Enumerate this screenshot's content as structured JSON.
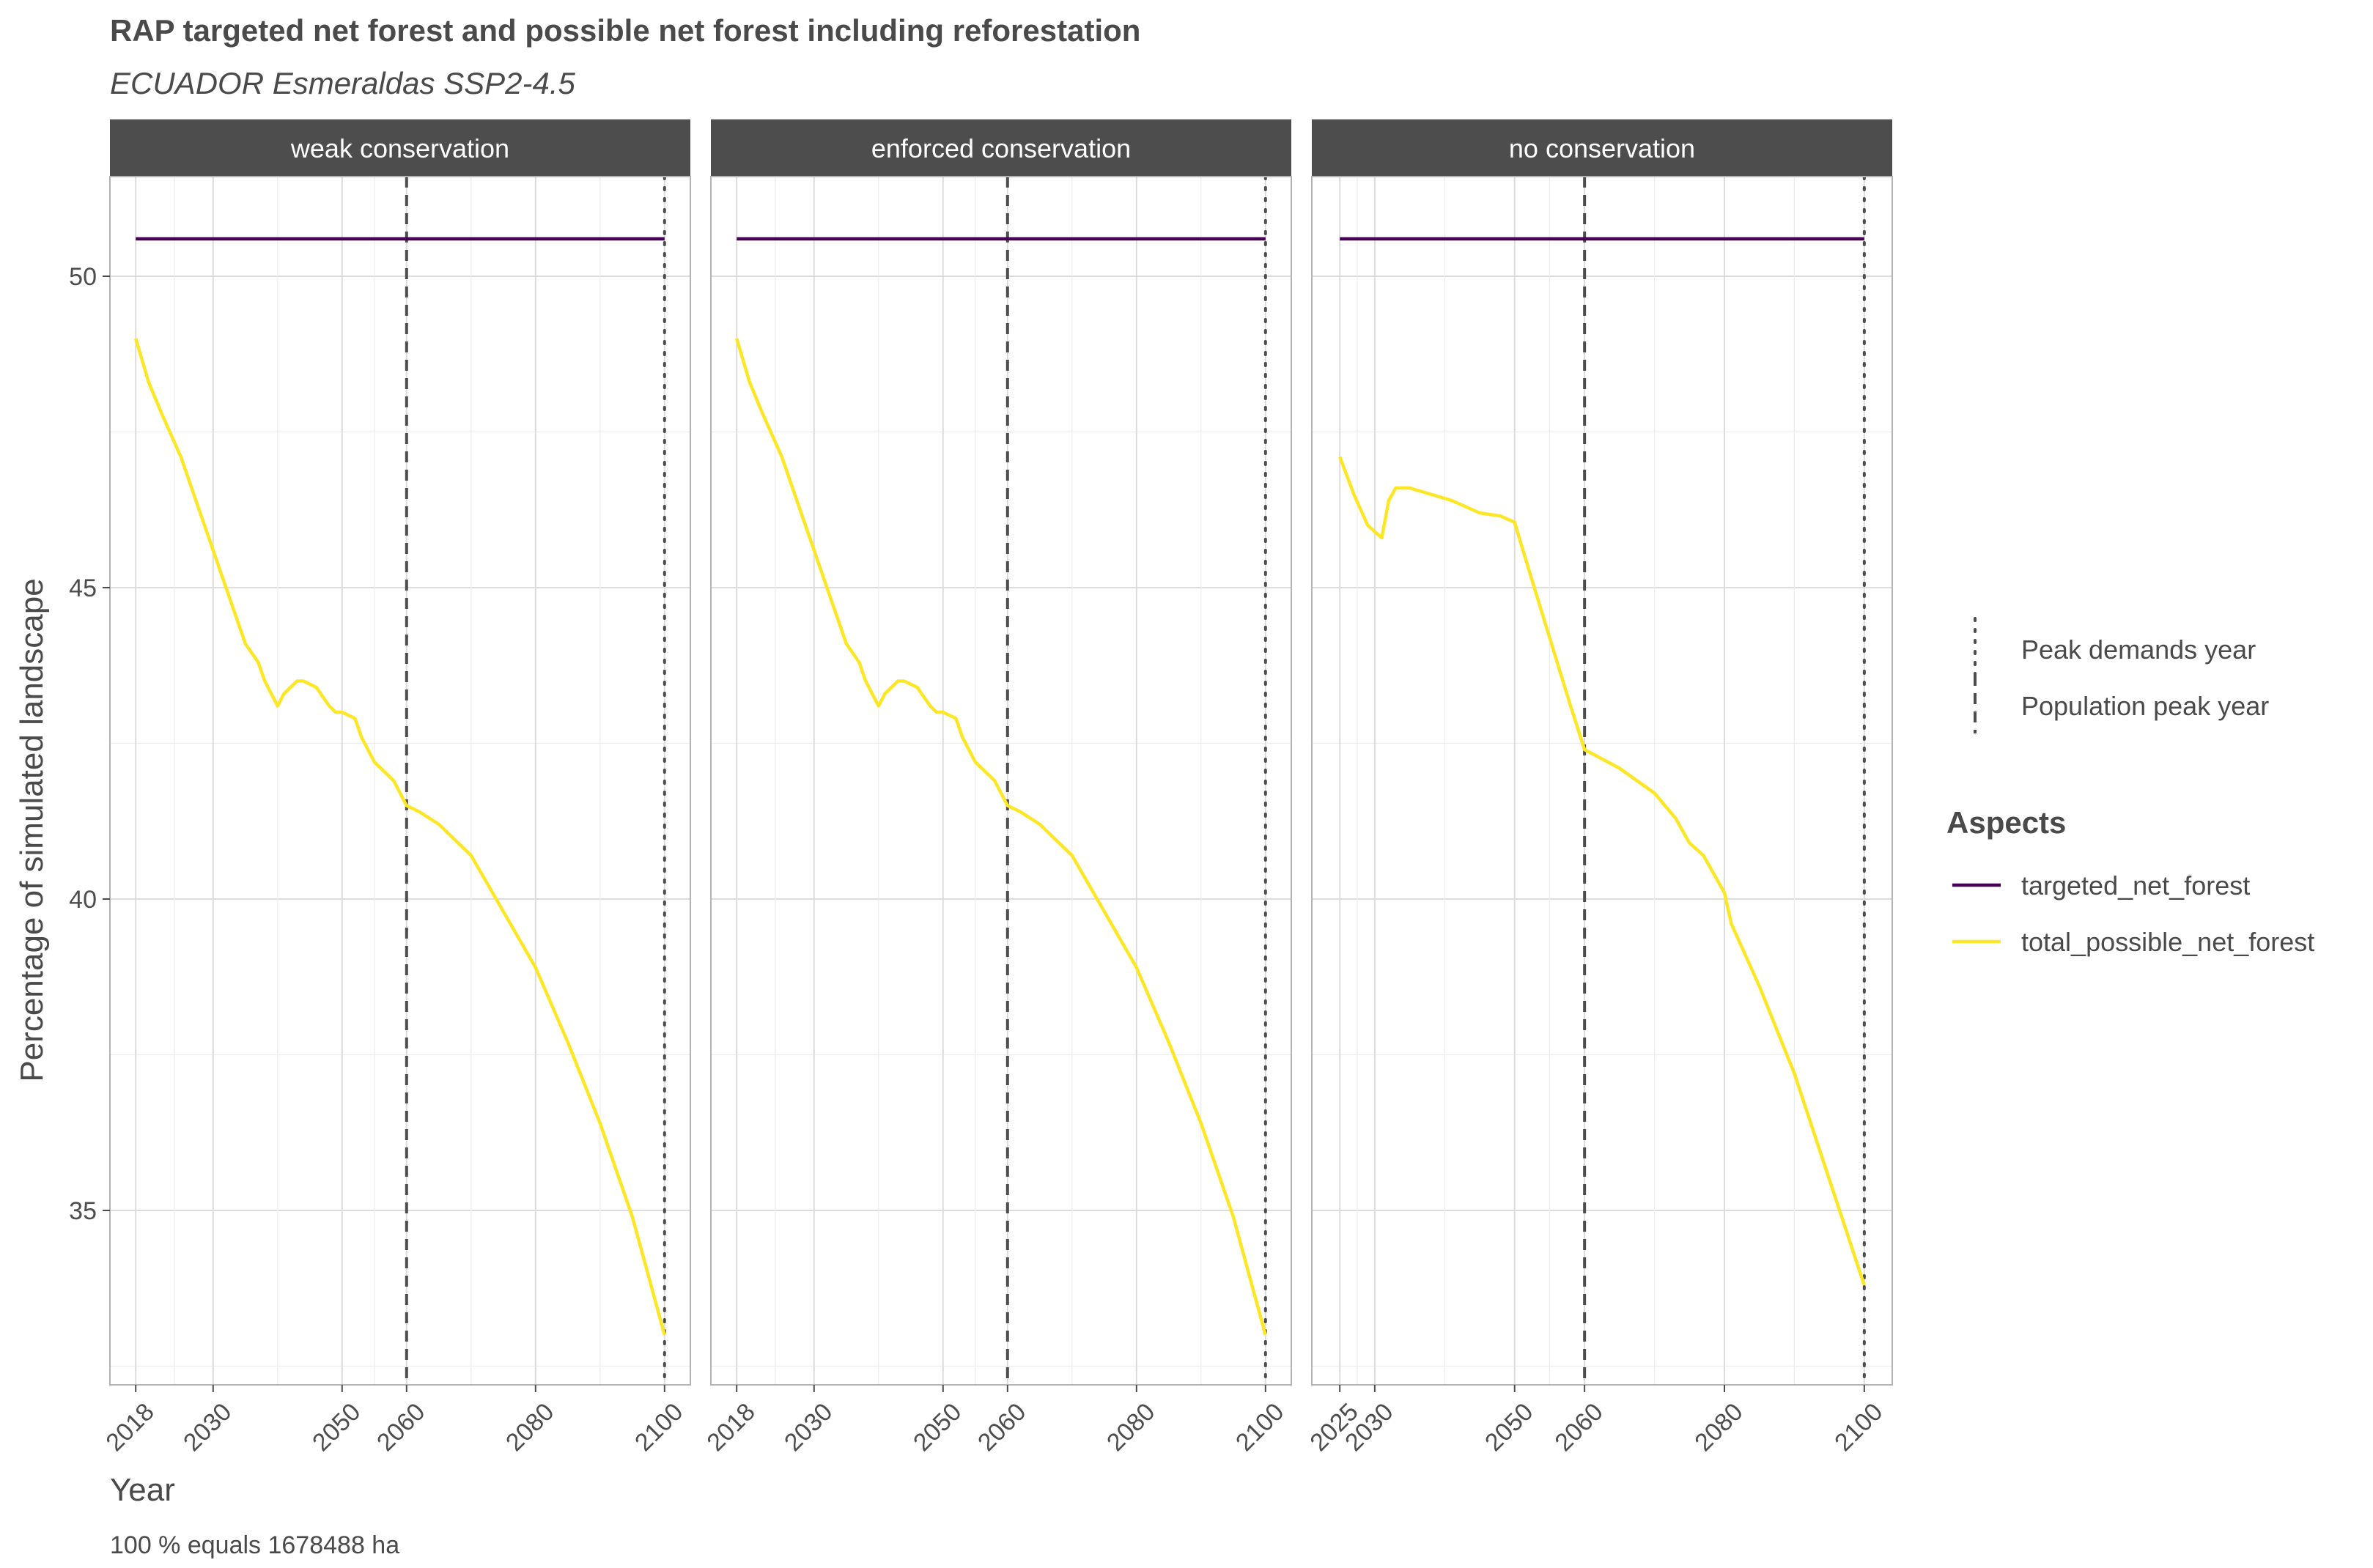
{
  "chart_data": {
    "type": "line",
    "title": "RAP targeted net forest and possible net forest including reforestation",
    "subtitle": "ECUADOR Esmeraldas SSP2-4.5",
    "xlabel": "Year",
    "ylabel": "Percentage of simulated landscape",
    "caption": "100 % equals 1678488 ha",
    "ylim": [
      32.2,
      51.6
    ],
    "y_ticks": [
      35,
      40,
      45,
      50
    ],
    "grid": true,
    "facets": [
      {
        "label": "weak conservation",
        "xlim": [
          2014,
          2104
        ],
        "x_ticks": [
          2018,
          2030,
          2050,
          2060,
          2080,
          2100
        ],
        "series": [
          {
            "name": "targeted_net_forest",
            "x": [
              2018,
              2100
            ],
            "y": [
              50.6,
              50.6
            ]
          },
          {
            "name": "total_possible_net_forest",
            "x": [
              2018,
              2020,
              2022,
              2025,
              2028,
              2030,
              2032,
              2035,
              2037,
              2038,
              2040,
              2041,
              2043,
              2044,
              2046,
              2048,
              2049,
              2050,
              2052,
              2053,
              2055,
              2058,
              2059,
              2060,
              2062,
              2065,
              2070,
              2075,
              2080,
              2085,
              2090,
              2095,
              2100
            ],
            "y": [
              49.0,
              48.3,
              47.8,
              47.1,
              46.2,
              45.6,
              45.0,
              44.1,
              43.8,
              43.5,
              43.1,
              43.3,
              43.5,
              43.5,
              43.4,
              43.1,
              43.0,
              43.0,
              42.9,
              42.6,
              42.2,
              41.9,
              41.7,
              41.5,
              41.4,
              41.2,
              40.7,
              39.8,
              38.9,
              37.7,
              36.4,
              34.9,
              33.0
            ]
          }
        ]
      },
      {
        "label": "enforced conservation",
        "xlim": [
          2014,
          2104
        ],
        "x_ticks": [
          2018,
          2030,
          2050,
          2060,
          2080,
          2100
        ],
        "series": [
          {
            "name": "targeted_net_forest",
            "x": [
              2018,
              2100
            ],
            "y": [
              50.6,
              50.6
            ]
          },
          {
            "name": "total_possible_net_forest",
            "x": [
              2018,
              2020,
              2022,
              2025,
              2028,
              2030,
              2032,
              2035,
              2037,
              2038,
              2040,
              2041,
              2043,
              2044,
              2046,
              2048,
              2049,
              2050,
              2052,
              2053,
              2055,
              2058,
              2059,
              2060,
              2062,
              2065,
              2070,
              2075,
              2080,
              2085,
              2090,
              2095,
              2100
            ],
            "y": [
              49.0,
              48.3,
              47.8,
              47.1,
              46.2,
              45.6,
              45.0,
              44.1,
              43.8,
              43.5,
              43.1,
              43.3,
              43.5,
              43.5,
              43.4,
              43.1,
              43.0,
              43.0,
              42.9,
              42.6,
              42.2,
              41.9,
              41.7,
              41.5,
              41.4,
              41.2,
              40.7,
              39.8,
              38.9,
              37.7,
              36.4,
              34.9,
              33.0
            ]
          }
        ]
      },
      {
        "label": "no conservation",
        "xlim": [
          2021,
          2104
        ],
        "x_ticks": [
          2025,
          2030,
          2050,
          2060,
          2080,
          2100
        ],
        "series": [
          {
            "name": "targeted_net_forest",
            "x": [
              2025,
              2100
            ],
            "y": [
              50.6,
              50.6
            ]
          },
          {
            "name": "total_possible_net_forest",
            "x": [
              2025,
              2027,
              2029,
              2031,
              2032,
              2033,
              2035,
              2038,
              2041,
              2043,
              2045,
              2048,
              2050,
              2052,
              2055,
              2058,
              2060,
              2065,
              2070,
              2073,
              2075,
              2077,
              2080,
              2081,
              2085,
              2090,
              2095,
              2100
            ],
            "y": [
              47.1,
              46.5,
              46.0,
              45.8,
              46.4,
              46.6,
              46.6,
              46.5,
              46.4,
              46.3,
              46.2,
              46.15,
              46.05,
              45.3,
              44.2,
              43.1,
              42.4,
              42.1,
              41.7,
              41.3,
              40.9,
              40.7,
              40.1,
              39.6,
              38.6,
              37.2,
              35.5,
              33.8
            ]
          }
        ]
      }
    ],
    "vlines": [
      {
        "name": "Peak demands year",
        "x": 2100,
        "style": "dotted"
      },
      {
        "name": "Population peak year",
        "x": 2060,
        "style": "dashed"
      }
    ],
    "legend": {
      "placement": "right",
      "title": "Aspects",
      "linetype_entries": [
        "Peak demands year",
        "Population peak year"
      ],
      "color_entries": [
        {
          "name": "targeted_net_forest",
          "color": "#440154"
        },
        {
          "name": "total_possible_net_forest",
          "color": "#fde725"
        }
      ]
    }
  }
}
